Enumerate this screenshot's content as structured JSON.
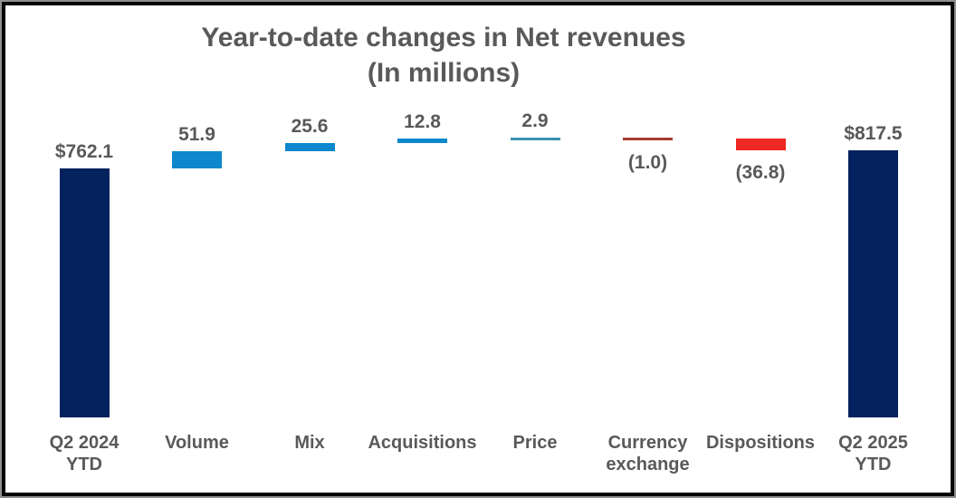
{
  "chart_data": {
    "type": "bar",
    "subtype": "waterfall",
    "title": "Year-to-date changes in Net revenues",
    "subtitle": "(In millions)",
    "categories": [
      "Q2 2024\nYTD",
      "Volume",
      "Mix",
      "Acquisitions",
      "Price",
      "Currency\nexchange",
      "Dispositions",
      "Q2 2025\nYTD"
    ],
    "values": [
      762.1,
      51.9,
      25.6,
      12.8,
      2.9,
      -1.0,
      -36.8,
      817.5
    ],
    "value_labels": [
      "$762.1",
      "51.9",
      "25.6",
      "12.8",
      "2.9",
      "(1.0)",
      "(36.8)",
      "$817.5"
    ],
    "bar_roles": [
      "total",
      "delta",
      "delta",
      "delta",
      "delta",
      "delta",
      "delta",
      "total"
    ],
    "cumulative": [
      762.1,
      814.0,
      839.6,
      852.4,
      855.3,
      854.3,
      817.5,
      817.5
    ],
    "ylim": [
      0,
      860
    ],
    "axes_visible": false,
    "gridlines": false,
    "legend": "none",
    "colors": {
      "total": "#04225e",
      "positive": "#0e87cd",
      "negative": "#ee2823",
      "positive_thin": "#3c91af",
      "negative_thin": "#a53c30",
      "label_text": "#58595b"
    }
  }
}
